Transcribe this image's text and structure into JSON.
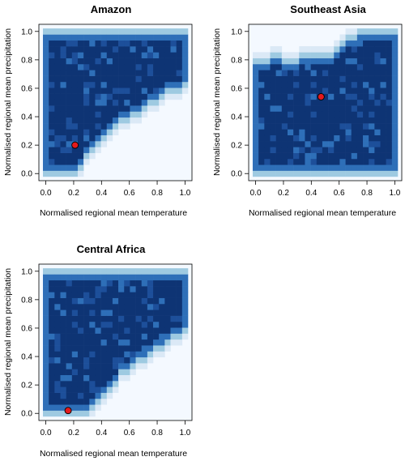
{
  "colors": {
    "background_cell": "#f4f9ff",
    "density_levels": [
      "#dbe9f6",
      "#9ecae1",
      "#5a9fd4",
      "#2e6fb8",
      "#1d4f9a",
      "#0e3474"
    ],
    "point_fill": "#e41a1c",
    "point_stroke": "#000000"
  },
  "chart_data": [
    {
      "type": "heatmap",
      "title": "Amazon",
      "xlabel": "Normalised regional mean temperature",
      "ylabel": "Normalised regional mean precipitation",
      "xlim": [
        -0.05,
        1.05
      ],
      "ylim": [
        -0.05,
        1.05
      ],
      "xticks": [
        "0.0",
        "0.2",
        "0.4",
        "0.6",
        "0.8",
        "1.0"
      ],
      "yticks": [
        "0.0",
        "0.2",
        "0.4",
        "0.6",
        "0.8",
        "1.0"
      ],
      "grid_resolution": 25,
      "region_description": "filled triangle-like region: lower bound rises from about 0.0 at x=0.2 to about 0.6 at x=1.0",
      "boundary_lower": [
        [
          0.0,
          0.0
        ],
        [
          0.2,
          0.0
        ],
        [
          0.3,
          0.12
        ],
        [
          0.5,
          0.35
        ],
        [
          0.7,
          0.45
        ],
        [
          0.9,
          0.58
        ],
        [
          1.0,
          0.62
        ]
      ],
      "boundary_upper": [
        [
          0.0,
          1.0
        ],
        [
          1.0,
          1.0
        ]
      ],
      "highlight_point": {
        "x": 0.21,
        "y": 0.2
      }
    },
    {
      "type": "heatmap",
      "title": "Southeast Asia",
      "xlabel": "Normalised regional mean temperature",
      "ylabel": "Normalised regional mean precipitation",
      "xlim": [
        -0.05,
        1.05
      ],
      "ylim": [
        -0.05,
        1.05
      ],
      "xticks": [
        "0.0",
        "0.2",
        "0.4",
        "0.6",
        "0.8",
        "1.0"
      ],
      "yticks": [
        "0.0",
        "0.2",
        "0.4",
        "0.6",
        "0.8",
        "1.0"
      ],
      "grid_resolution": 25,
      "region_description": "filled region with notch at top between x=0.1 and x=0.65",
      "boundary_lower": [
        [
          0.0,
          0.0
        ],
        [
          1.0,
          0.0
        ]
      ],
      "boundary_upper": [
        [
          0.0,
          0.8
        ],
        [
          0.15,
          0.82
        ],
        [
          0.25,
          0.78
        ],
        [
          0.35,
          0.82
        ],
        [
          0.45,
          0.85
        ],
        [
          0.55,
          0.82
        ],
        [
          0.65,
          0.95
        ],
        [
          0.8,
          1.0
        ],
        [
          1.0,
          1.0
        ]
      ],
      "highlight_point": {
        "x": 0.47,
        "y": 0.54
      }
    },
    {
      "type": "heatmap",
      "title": "Central Africa",
      "xlabel": "Normalised regional mean temperature",
      "ylabel": "Normalised regional mean precipitation",
      "xlim": [
        -0.05,
        1.05
      ],
      "ylim": [
        -0.05,
        1.05
      ],
      "xticks": [
        "0.0",
        "0.2",
        "0.4",
        "0.6",
        "0.8",
        "1.0"
      ],
      "yticks": [
        "0.0",
        "0.2",
        "0.4",
        "0.6",
        "0.8",
        "1.0"
      ],
      "grid_resolution": 25,
      "region_description": "filled region: lower bound rises from about 0.0 at x=0.3 to about 0.58 at x=1.0",
      "boundary_lower": [
        [
          0.0,
          0.0
        ],
        [
          0.3,
          0.0
        ],
        [
          0.4,
          0.12
        ],
        [
          0.55,
          0.28
        ],
        [
          0.7,
          0.38
        ],
        [
          0.85,
          0.48
        ],
        [
          1.0,
          0.58
        ]
      ],
      "boundary_upper": [
        [
          0.0,
          1.0
        ],
        [
          1.0,
          1.0
        ]
      ],
      "highlight_point": {
        "x": 0.16,
        "y": 0.02
      }
    }
  ]
}
